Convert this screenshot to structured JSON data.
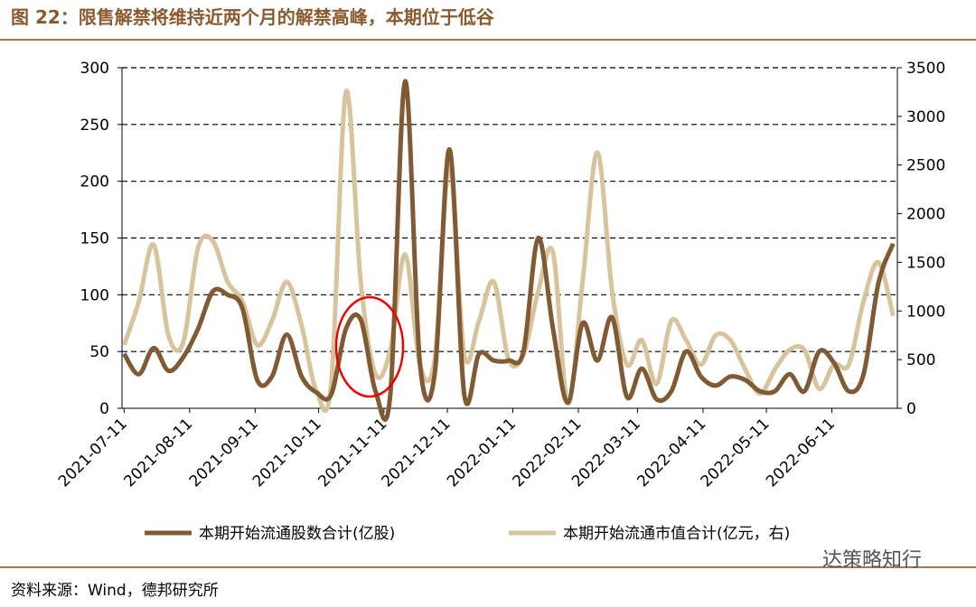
{
  "chart_data": {
    "type": "line",
    "title": "图 22：限售解禁将维持近两个月的解禁高峰，本期位于低谷",
    "source": "资料来源：Wind，德邦研究所",
    "watermark": "达策略知行",
    "x": [
      "2021-07-11",
      "2021-07-18",
      "2021-07-25",
      "2021-08-01",
      "2021-08-08",
      "2021-08-15",
      "2021-08-22",
      "2021-08-29",
      "2021-09-05",
      "2021-09-12",
      "2021-09-19",
      "2021-09-26",
      "2021-10-03",
      "2021-10-10",
      "2021-10-17",
      "2021-10-24",
      "2021-10-31",
      "2021-11-07",
      "2021-11-14",
      "2021-11-21",
      "2021-11-28",
      "2021-12-05",
      "2021-12-12",
      "2021-12-19",
      "2021-12-26",
      "2022-01-02",
      "2022-01-09",
      "2022-01-16",
      "2022-01-23",
      "2022-01-30",
      "2022-02-06",
      "2022-02-13",
      "2022-02-20",
      "2022-02-27",
      "2022-03-06",
      "2022-03-13",
      "2022-03-20",
      "2022-03-27",
      "2022-04-03",
      "2022-04-10",
      "2022-04-17",
      "2022-04-24",
      "2022-05-01",
      "2022-05-08",
      "2022-05-15",
      "2022-05-22",
      "2022-05-29",
      "2022-06-05",
      "2022-06-12",
      "2022-06-19",
      "2022-06-26",
      "2022-07-03",
      "2022-07-10"
    ],
    "series": [
      {
        "name": "本期开始流通股数合计(亿股)",
        "color": "#7f5a33",
        "values": [
          48,
          30,
          53,
          33,
          45,
          70,
          103,
          100,
          88,
          25,
          28,
          65,
          28,
          14,
          12,
          70,
          78,
          15,
          12,
          288,
          40,
          30,
          228,
          12,
          48,
          42,
          42,
          50,
          150,
          70,
          5,
          75,
          42,
          80,
          10,
          35,
          8,
          15,
          50,
          28,
          20,
          28,
          25,
          15,
          15,
          30,
          15,
          50,
          40,
          15,
          30,
          110,
          145
        ]
      },
      {
        "name": "本期开始流通市值合计(亿元，右)",
        "color": "#d8c49c",
        "axis": "y2",
        "values": [
          650,
          1100,
          1680,
          750,
          680,
          1650,
          1720,
          1300,
          1100,
          650,
          900,
          1300,
          850,
          180,
          250,
          3250,
          1300,
          350,
          600,
          1580,
          450,
          500,
          2500,
          550,
          900,
          1300,
          500,
          550,
          1200,
          1600,
          50,
          1300,
          2630,
          1200,
          450,
          700,
          250,
          900,
          700,
          450,
          750,
          700,
          400,
          150,
          400,
          600,
          600,
          200,
          450,
          450,
          1100,
          1500,
          950
        ]
      }
    ],
    "xlim": [
      "2021-07-10",
      "2022-07-12"
    ],
    "xticks": [
      "2021-07-11",
      "2021-08-11",
      "2021-09-11",
      "2021-10-11",
      "2021-11-11",
      "2021-12-11",
      "2022-01-11",
      "2022-02-11",
      "2022-03-11",
      "2022-04-11",
      "2022-05-11",
      "2022-06-11"
    ],
    "ylim": [
      0,
      300
    ],
    "yticks": [
      0,
      50,
      100,
      150,
      200,
      250,
      300
    ],
    "y2lim": [
      0,
      3500
    ],
    "y2ticks": [
      0,
      500,
      1000,
      1500,
      2000,
      2500,
      3000,
      3500
    ],
    "grid": true
  }
}
